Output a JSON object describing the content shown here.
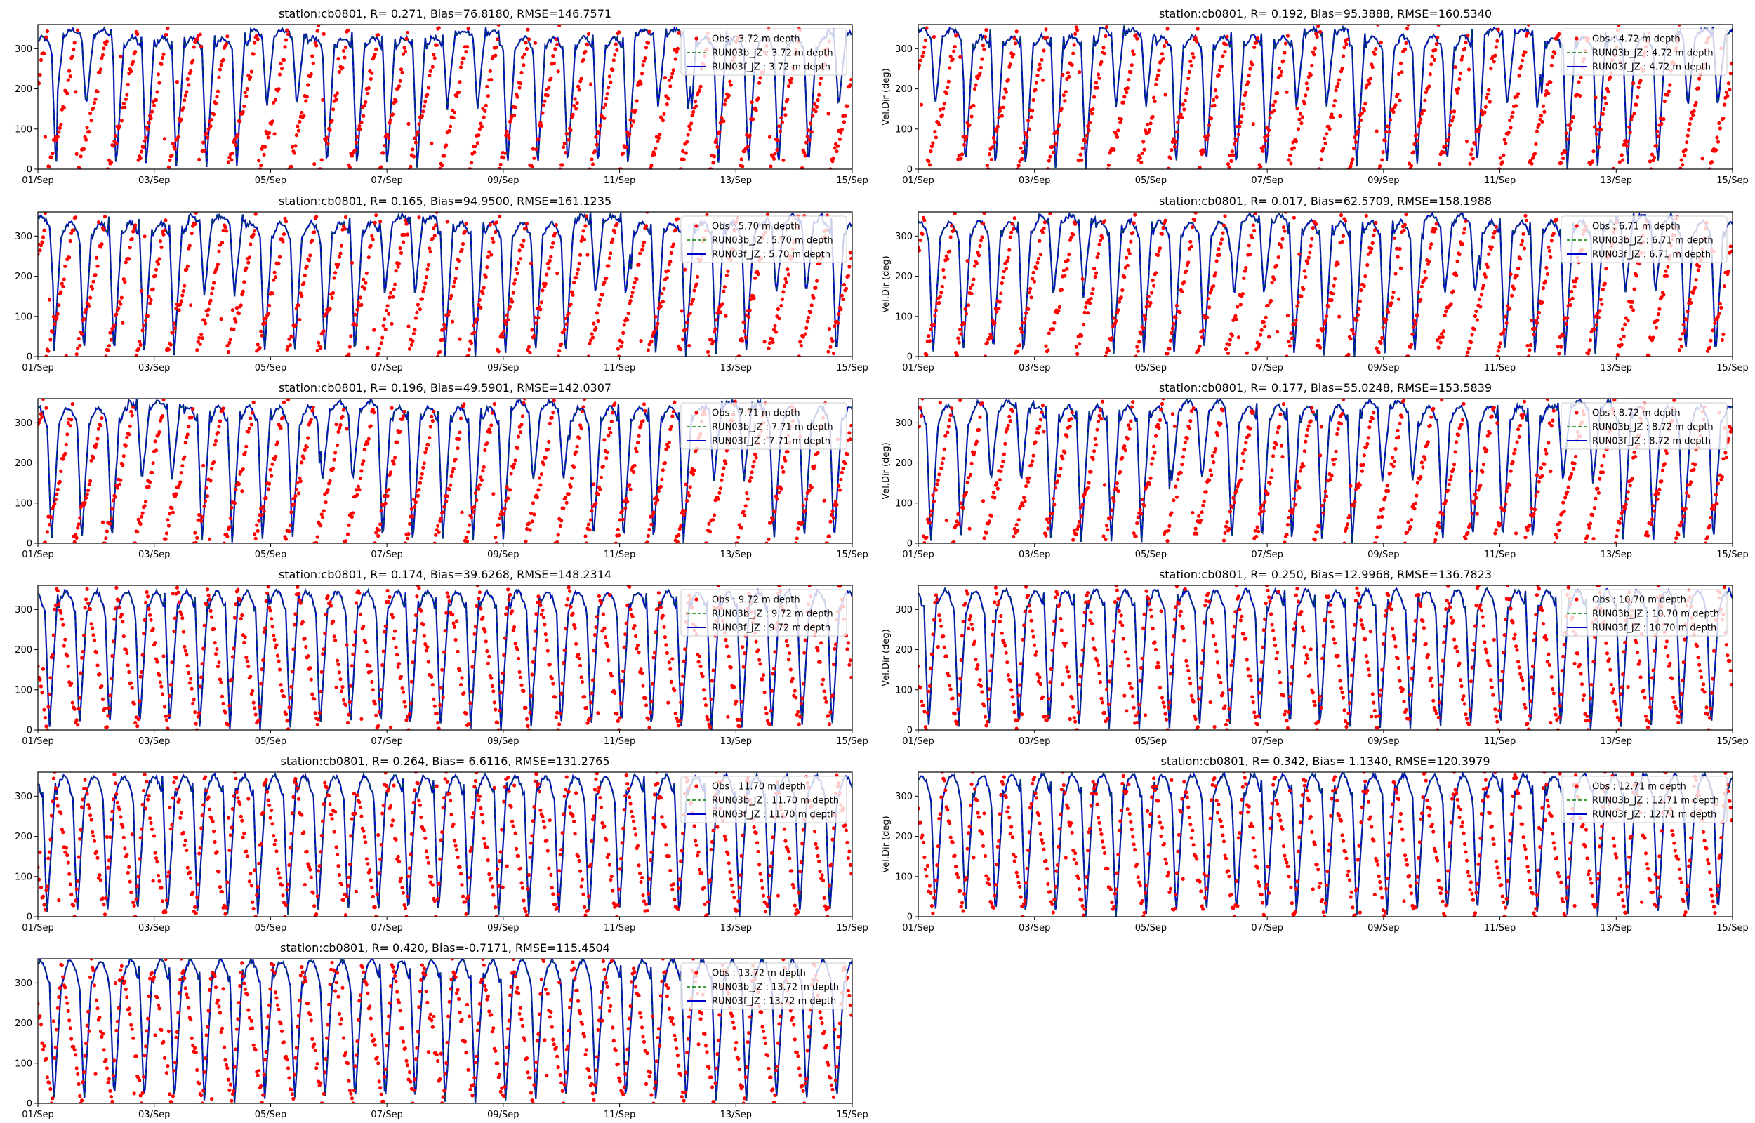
{
  "figure": {
    "colors": {
      "obs": "#ff0000",
      "run03b": "#008000",
      "run03f": "#0000cd"
    },
    "x_ticks": [
      "01/Sep",
      "03/Sep",
      "05/Sep",
      "07/Sep",
      "09/Sep",
      "11/Sep",
      "13/Sep",
      "15/Sep"
    ],
    "y_ticks": [
      "0",
      "100",
      "200",
      "300"
    ]
  },
  "chart_data": [
    {
      "type": "line",
      "title": "station:cb0801, R= 0.271, Bias=76.8180, RMSE=146.7571",
      "ylabel": "",
      "xlim": [
        "01/Sep",
        "15/Sep"
      ],
      "ylim": [
        0,
        360
      ],
      "legend": "top-right",
      "series": [
        {
          "name": "Obs : 3.72 m depth",
          "kind": "scatter"
        },
        {
          "name": "RUN03b_JZ : 3.72 m depth",
          "kind": "dashed-line"
        },
        {
          "name": "RUN03f_JZ : 3.72 m depth",
          "kind": "line"
        }
      ]
    },
    {
      "type": "line",
      "title": "station:cb0801, R= 0.192, Bias=95.3888, RMSE=160.5340",
      "ylabel": "Vel.Dir (deg)",
      "xlim": [
        "01/Sep",
        "15/Sep"
      ],
      "ylim": [
        0,
        360
      ],
      "legend": "top-right",
      "series": [
        {
          "name": "Obs : 4.72 m depth",
          "kind": "scatter"
        },
        {
          "name": "RUN03b_JZ : 4.72 m depth",
          "kind": "dashed-line"
        },
        {
          "name": "RUN03f_JZ : 4.72 m depth",
          "kind": "line"
        }
      ]
    },
    {
      "type": "line",
      "title": "station:cb0801, R= 0.165, Bias=94.9500, RMSE=161.1235",
      "ylabel": "",
      "xlim": [
        "01/Sep",
        "15/Sep"
      ],
      "ylim": [
        0,
        360
      ],
      "legend": "top-right",
      "series": [
        {
          "name": "Obs : 5.70 m depth",
          "kind": "scatter"
        },
        {
          "name": "RUN03b_JZ : 5.70 m depth",
          "kind": "dashed-line"
        },
        {
          "name": "RUN03f_JZ : 5.70 m depth",
          "kind": "line"
        }
      ]
    },
    {
      "type": "line",
      "title": "station:cb0801, R= 0.017, Bias=62.5709, RMSE=158.1988",
      "ylabel": "Vel.Dir (deg)",
      "xlim": [
        "01/Sep",
        "15/Sep"
      ],
      "ylim": [
        0,
        360
      ],
      "legend": "top-right",
      "series": [
        {
          "name": "Obs : 6.71 m depth",
          "kind": "scatter"
        },
        {
          "name": "RUN03b_JZ : 6.71 m depth",
          "kind": "dashed-line"
        },
        {
          "name": "RUN03f_JZ : 6.71 m depth",
          "kind": "line"
        }
      ]
    },
    {
      "type": "line",
      "title": "station:cb0801, R= 0.196, Bias=49.5901, RMSE=142.0307",
      "ylabel": "",
      "xlim": [
        "01/Sep",
        "15/Sep"
      ],
      "ylim": [
        0,
        360
      ],
      "legend": "top-right",
      "series": [
        {
          "name": "Obs : 7.71 m depth",
          "kind": "scatter"
        },
        {
          "name": "RUN03b_JZ : 7.71 m depth",
          "kind": "dashed-line"
        },
        {
          "name": "RUN03f_JZ : 7.71 m depth",
          "kind": "line"
        }
      ]
    },
    {
      "type": "line",
      "title": "station:cb0801, R= 0.177, Bias=55.0248, RMSE=153.5839",
      "ylabel": "Vel.Dir (deg)",
      "xlim": [
        "01/Sep",
        "15/Sep"
      ],
      "ylim": [
        0,
        360
      ],
      "legend": "top-right",
      "series": [
        {
          "name": "Obs : 8.72 m depth",
          "kind": "scatter"
        },
        {
          "name": "RUN03b_JZ : 8.72 m depth",
          "kind": "dashed-line"
        },
        {
          "name": "RUN03f_JZ : 8.72 m depth",
          "kind": "line"
        }
      ]
    },
    {
      "type": "line",
      "title": "station:cb0801, R= 0.174, Bias=39.6268, RMSE=148.2314",
      "ylabel": "",
      "xlim": [
        "01/Sep",
        "15/Sep"
      ],
      "ylim": [
        0,
        360
      ],
      "legend": "top-right",
      "series": [
        {
          "name": "Obs : 9.72 m depth",
          "kind": "scatter"
        },
        {
          "name": "RUN03b_JZ : 9.72 m depth",
          "kind": "dashed-line"
        },
        {
          "name": "RUN03f_JZ : 9.72 m depth",
          "kind": "line"
        }
      ]
    },
    {
      "type": "line",
      "title": "station:cb0801, R= 0.250, Bias=12.9968, RMSE=136.7823",
      "ylabel": "Vel.Dir (deg)",
      "xlim": [
        "01/Sep",
        "15/Sep"
      ],
      "ylim": [
        0,
        360
      ],
      "legend": "top-right",
      "series": [
        {
          "name": "Obs : 10.70 m depth",
          "kind": "scatter"
        },
        {
          "name": "RUN03b_JZ : 10.70 m depth",
          "kind": "dashed-line"
        },
        {
          "name": "RUN03f_JZ : 10.70 m depth",
          "kind": "line"
        }
      ]
    },
    {
      "type": "line",
      "title": "station:cb0801, R= 0.264, Bias= 6.6116, RMSE=131.2765",
      "ylabel": "",
      "xlim": [
        "01/Sep",
        "15/Sep"
      ],
      "ylim": [
        0,
        360
      ],
      "legend": "top-right",
      "series": [
        {
          "name": "Obs : 11.70 m depth",
          "kind": "scatter"
        },
        {
          "name": "RUN03b_JZ : 11.70 m depth",
          "kind": "dashed-line"
        },
        {
          "name": "RUN03f_JZ : 11.70 m depth",
          "kind": "line"
        }
      ]
    },
    {
      "type": "line",
      "title": "station:cb0801, R= 0.342, Bias= 1.1340, RMSE=120.3979",
      "ylabel": "Vel.Dir (deg)",
      "xlim": [
        "01/Sep",
        "15/Sep"
      ],
      "ylim": [
        0,
        360
      ],
      "legend": "top-right",
      "series": [
        {
          "name": "Obs : 12.71 m depth",
          "kind": "scatter"
        },
        {
          "name": "RUN03b_JZ : 12.71 m depth",
          "kind": "dashed-line"
        },
        {
          "name": "RUN03f_JZ : 12.71 m depth",
          "kind": "line"
        }
      ]
    },
    {
      "type": "line",
      "title": "station:cb0801, R= 0.420, Bias=-0.7171, RMSE=115.4504",
      "ylabel": "",
      "xlim": [
        "01/Sep",
        "15/Sep"
      ],
      "ylim": [
        0,
        360
      ],
      "legend": "top-right",
      "series": [
        {
          "name": "Obs : 13.72 m depth",
          "kind": "scatter"
        },
        {
          "name": "RUN03b_JZ : 13.72 m depth",
          "kind": "dashed-line"
        },
        {
          "name": "RUN03f_JZ : 13.72 m depth",
          "kind": "line"
        }
      ]
    }
  ]
}
